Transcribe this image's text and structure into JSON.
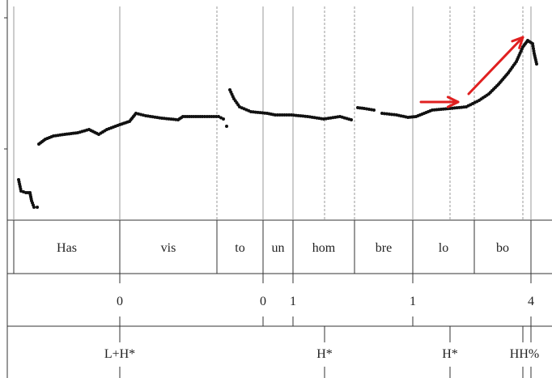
{
  "syllables": [
    {
      "label": "Has"
    },
    {
      "label": "vis"
    },
    {
      "label": "to"
    },
    {
      "label": "un"
    },
    {
      "label": "hom"
    },
    {
      "label": "bre"
    },
    {
      "label": "lo"
    },
    {
      "label": "bo"
    }
  ],
  "break_indices": [
    {
      "label": "0"
    },
    {
      "label": "0"
    },
    {
      "label": "1"
    },
    {
      "label": "1"
    },
    {
      "label": "4"
    }
  ],
  "tones": [
    {
      "label": "L+H*"
    },
    {
      "label": "H*"
    },
    {
      "label": "H*"
    },
    {
      "label": "HH%"
    }
  ],
  "annotation_color": "#e02020",
  "point_color": "#111111",
  "line_color": "#333333"
}
